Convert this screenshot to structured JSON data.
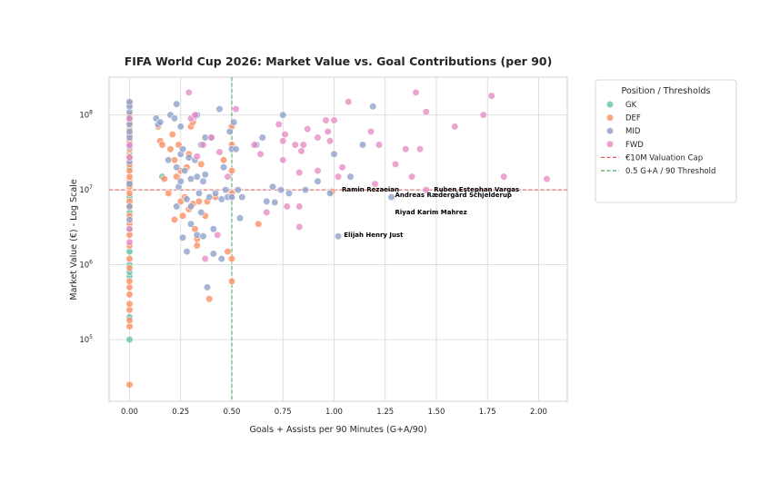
{
  "chart_data": {
    "type": "scatter",
    "title": "FIFA World Cup 2026: Market Value vs. Goal Contributions (per 90)",
    "xlabel": "Goals + Assists per 90 Minutes (G+A/90)",
    "ylabel": "Market Value (€) - Log Scale",
    "xlim": [
      -0.1,
      2.14
    ],
    "ylim": [
      15000,
      320000000
    ],
    "y_scale": "log",
    "grid": true,
    "x_ticks": [
      0.0,
      0.25,
      0.5,
      0.75,
      1.0,
      1.25,
      1.5,
      1.75,
      2.0
    ],
    "x_tick_labels": [
      "0.00",
      "0.25",
      "0.50",
      "0.75",
      "1.00",
      "1.25",
      "1.50",
      "1.75",
      "2.00"
    ],
    "y_ticks": [
      100000,
      1000000,
      10000000,
      100000000
    ],
    "y_tick_labels": [
      {
        "base": "10",
        "exp": "5"
      },
      {
        "base": "10",
        "exp": "6"
      },
      {
        "base": "10",
        "exp": "7"
      },
      {
        "base": "10",
        "exp": "8"
      }
    ],
    "legend": {
      "title": "Position / Thresholds",
      "placement": "outside-right",
      "entries": [
        {
          "label": "GK",
          "kind": "marker",
          "color": "#66c2a5"
        },
        {
          "label": "DEF",
          "kind": "marker",
          "color": "#fc8d62"
        },
        {
          "label": "MID",
          "kind": "marker",
          "color": "#8da0cb"
        },
        {
          "label": "FWD",
          "kind": "marker",
          "color": "#e78ac3"
        },
        {
          "label": "€10M Valuation Cap",
          "kind": "line",
          "color": "#e05a5a"
        },
        {
          "label": "0.5 G+A / 90 Threshold",
          "kind": "line",
          "color": "#55a868"
        }
      ]
    },
    "thresholds": {
      "y_value": 10000000,
      "x_value": 0.5
    },
    "series": [
      {
        "name": "GK",
        "color": "#66c2a5",
        "points": [
          [
            0.0,
            100000
          ],
          [
            0.0,
            200000
          ],
          [
            0.0,
            700000
          ],
          [
            0.0,
            800000
          ],
          [
            0.0,
            1000000
          ],
          [
            0.0,
            1500000
          ],
          [
            0.0,
            3000000
          ],
          [
            0.0,
            5000000
          ],
          [
            0.0,
            8000000
          ],
          [
            0.0,
            12000000
          ],
          [
            0.0,
            20000000
          ],
          [
            0.0,
            30000000
          ],
          [
            0.16,
            15000000
          ]
        ]
      },
      {
        "name": "DEF",
        "color": "#fc8d62",
        "points": [
          [
            0.0,
            25000
          ],
          [
            0.0,
            150000
          ],
          [
            0.0,
            180000
          ],
          [
            0.0,
            250000
          ],
          [
            0.0,
            300000
          ],
          [
            0.0,
            400000
          ],
          [
            0.0,
            500000
          ],
          [
            0.0,
            600000
          ],
          [
            0.0,
            900000
          ],
          [
            0.0,
            1200000
          ],
          [
            0.0,
            1800000
          ],
          [
            0.0,
            2500000
          ],
          [
            0.0,
            3500000
          ],
          [
            0.0,
            4500000
          ],
          [
            0.0,
            6000000
          ],
          [
            0.0,
            7000000
          ],
          [
            0.0,
            9000000
          ],
          [
            0.0,
            11000000
          ],
          [
            0.0,
            13000000
          ],
          [
            0.0,
            15000000
          ],
          [
            0.0,
            18000000
          ],
          [
            0.0,
            22000000
          ],
          [
            0.0,
            28000000
          ],
          [
            0.0,
            35000000
          ],
          [
            0.0,
            45000000
          ],
          [
            0.0,
            55000000
          ],
          [
            0.0,
            65000000
          ],
          [
            0.0,
            80000000
          ],
          [
            0.0,
            100000000
          ],
          [
            0.0,
            140000000
          ],
          [
            0.14,
            70000000
          ],
          [
            0.15,
            45000000
          ],
          [
            0.16,
            40000000
          ],
          [
            0.17,
            14000000
          ],
          [
            0.19,
            9000000
          ],
          [
            0.2,
            35000000
          ],
          [
            0.21,
            55000000
          ],
          [
            0.22,
            25000000
          ],
          [
            0.22,
            4000000
          ],
          [
            0.23,
            15000000
          ],
          [
            0.24,
            40000000
          ],
          [
            0.25,
            18000000
          ],
          [
            0.25,
            7000000
          ],
          [
            0.26,
            4500000
          ],
          [
            0.27,
            8000000
          ],
          [
            0.28,
            20000000
          ],
          [
            0.29,
            30000000
          ],
          [
            0.29,
            5500000
          ],
          [
            0.3,
            70000000
          ],
          [
            0.31,
            80000000
          ],
          [
            0.31,
            6500000
          ],
          [
            0.32,
            3000000
          ],
          [
            0.33,
            2200000
          ],
          [
            0.33,
            1800000
          ],
          [
            0.34,
            7000000
          ],
          [
            0.35,
            22000000
          ],
          [
            0.37,
            4500000
          ],
          [
            0.38,
            7000000
          ],
          [
            0.39,
            350000
          ],
          [
            0.42,
            8000000
          ],
          [
            0.46,
            25000000
          ],
          [
            0.48,
            1500000
          ],
          [
            0.5,
            1200000
          ],
          [
            0.5,
            600000
          ],
          [
            0.5,
            9000000
          ],
          [
            0.5,
            18000000
          ],
          [
            0.5,
            40000000
          ],
          [
            0.5,
            70000000
          ],
          [
            0.63,
            3500000
          ],
          [
            0.99,
            9500000
          ]
        ]
      },
      {
        "name": "MID",
        "color": "#8da0cb",
        "points": [
          [
            0.0,
            4000000
          ],
          [
            0.0,
            6000000
          ],
          [
            0.0,
            12000000
          ],
          [
            0.0,
            24000000
          ],
          [
            0.0,
            38000000
          ],
          [
            0.0,
            50000000
          ],
          [
            0.0,
            60000000
          ],
          [
            0.0,
            75000000
          ],
          [
            0.0,
            90000000
          ],
          [
            0.0,
            110000000
          ],
          [
            0.0,
            130000000
          ],
          [
            0.0,
            150000000
          ],
          [
            0.13,
            90000000
          ],
          [
            0.14,
            75000000
          ],
          [
            0.15,
            80000000
          ],
          [
            0.19,
            25000000
          ],
          [
            0.2,
            100000000
          ],
          [
            0.22,
            90000000
          ],
          [
            0.23,
            140000000
          ],
          [
            0.23,
            20000000
          ],
          [
            0.23,
            6000000
          ],
          [
            0.24,
            11000000
          ],
          [
            0.25,
            70000000
          ],
          [
            0.25,
            30000000
          ],
          [
            0.25,
            13000000
          ],
          [
            0.26,
            2300000
          ],
          [
            0.26,
            35000000
          ],
          [
            0.27,
            18000000
          ],
          [
            0.28,
            7500000
          ],
          [
            0.28,
            1500000
          ],
          [
            0.29,
            27000000
          ],
          [
            0.3,
            14000000
          ],
          [
            0.3,
            6000000
          ],
          [
            0.3,
            3500000
          ],
          [
            0.32,
            95000000
          ],
          [
            0.32,
            25000000
          ],
          [
            0.33,
            100000000
          ],
          [
            0.33,
            15000000
          ],
          [
            0.33,
            2500000
          ],
          [
            0.34,
            9000000
          ],
          [
            0.35,
            40000000
          ],
          [
            0.35,
            5000000
          ],
          [
            0.36,
            13000000
          ],
          [
            0.36,
            2400000
          ],
          [
            0.37,
            50000000
          ],
          [
            0.37,
            16000000
          ],
          [
            0.38,
            500000
          ],
          [
            0.39,
            8000000
          ],
          [
            0.4,
            50000000
          ],
          [
            0.41,
            3000000
          ],
          [
            0.41,
            1400000
          ],
          [
            0.42,
            9000000
          ],
          [
            0.44,
            120000000
          ],
          [
            0.45,
            7500000
          ],
          [
            0.45,
            1200000
          ],
          [
            0.46,
            20000000
          ],
          [
            0.47,
            10000000
          ],
          [
            0.48,
            8000000
          ],
          [
            0.49,
            60000000
          ],
          [
            0.5,
            35000000
          ],
          [
            0.5,
            8000000
          ],
          [
            0.51,
            80000000
          ],
          [
            0.52,
            35000000
          ],
          [
            0.53,
            10000000
          ],
          [
            0.54,
            4200000
          ],
          [
            0.55,
            8000000
          ],
          [
            0.62,
            40000000
          ],
          [
            0.65,
            50000000
          ],
          [
            0.67,
            7000000
          ],
          [
            0.7,
            11000000
          ],
          [
            0.71,
            6800000
          ],
          [
            0.74,
            10000000
          ],
          [
            0.75,
            100000000
          ],
          [
            0.78,
            9000000
          ],
          [
            0.86,
            10000000
          ],
          [
            0.92,
            13000000
          ],
          [
            0.98,
            9000000
          ],
          [
            1.0,
            30000000
          ],
          [
            1.02,
            2400000
          ],
          [
            1.08,
            15000000
          ],
          [
            1.14,
            40000000
          ],
          [
            1.19,
            130000000
          ],
          [
            1.28,
            8000000
          ]
        ]
      },
      {
        "name": "FWD",
        "color": "#e78ac3",
        "points": [
          [
            0.0,
            3000000
          ],
          [
            0.0,
            2000000
          ],
          [
            0.0,
            27000000
          ],
          [
            0.0,
            40000000
          ],
          [
            0.0,
            90000000
          ],
          [
            0.29,
            200000000
          ],
          [
            0.3,
            90000000
          ],
          [
            0.32,
            100000000
          ],
          [
            0.33,
            28000000
          ],
          [
            0.36,
            40000000
          ],
          [
            0.37,
            1200000
          ],
          [
            0.4,
            50000000
          ],
          [
            0.43,
            2500000
          ],
          [
            0.44,
            32000000
          ],
          [
            0.48,
            15000000
          ],
          [
            0.52,
            120000000
          ],
          [
            0.61,
            40000000
          ],
          [
            0.64,
            30000000
          ],
          [
            0.67,
            5000000
          ],
          [
            0.73,
            75000000
          ],
          [
            0.75,
            25000000
          ],
          [
            0.75,
            45000000
          ],
          [
            0.76,
            55000000
          ],
          [
            0.77,
            6000000
          ],
          [
            0.81,
            40000000
          ],
          [
            0.83,
            3200000
          ],
          [
            0.83,
            6000000
          ],
          [
            0.83,
            17000000
          ],
          [
            0.84,
            33000000
          ],
          [
            0.85,
            40000000
          ],
          [
            0.87,
            65000000
          ],
          [
            0.92,
            18000000
          ],
          [
            0.92,
            50000000
          ],
          [
            0.96,
            85000000
          ],
          [
            0.97,
            60000000
          ],
          [
            0.98,
            45000000
          ],
          [
            1.0,
            85000000
          ],
          [
            1.02,
            15000000
          ],
          [
            1.04,
            20000000
          ],
          [
            1.07,
            150000000
          ],
          [
            1.18,
            60000000
          ],
          [
            1.2,
            12000000
          ],
          [
            1.22,
            40000000
          ],
          [
            1.3,
            22000000
          ],
          [
            1.35,
            35000000
          ],
          [
            1.38,
            15000000
          ],
          [
            1.4,
            200000000
          ],
          [
            1.42,
            35000000
          ],
          [
            1.45,
            110000000
          ],
          [
            1.45,
            10000000
          ],
          [
            1.59,
            70000000
          ],
          [
            1.73,
            100000000
          ],
          [
            1.77,
            180000000
          ],
          [
            1.83,
            15000000
          ],
          [
            2.04,
            14000000
          ]
        ]
      }
    ],
    "annotations": [
      {
        "text": "Ramin Rezaeian",
        "x": 1.02,
        "y": 10000000
      },
      {
        "text": "Ruben Estephan Vargas",
        "x": 1.47,
        "y": 10000000
      },
      {
        "text": "Andreas Rædergård Schjelderup",
        "x": 1.28,
        "y": 8500000
      },
      {
        "text": "Riyad Karim Mahrez",
        "x": 1.28,
        "y": 5000000
      },
      {
        "text": "Elijah Henry Just",
        "x": 1.03,
        "y": 2500000
      }
    ]
  }
}
